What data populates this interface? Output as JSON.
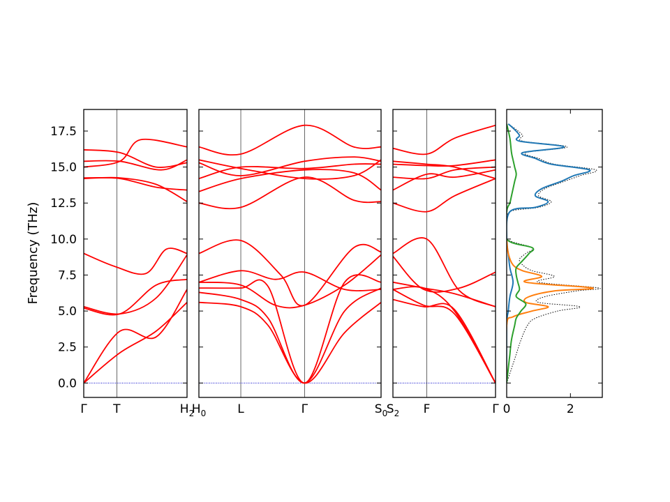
{
  "colors": {
    "bands": "#ff0000",
    "zero_line": "#0000cc",
    "dos_total": "#000000",
    "dos_1": "#1f77b4",
    "dos_2": "#ff7f0e",
    "dos_3": "#2ca02c"
  },
  "chart_data": {
    "type": "line",
    "title": "",
    "ylabel": "Frequency (THz)",
    "ylim": [
      -1,
      19
    ],
    "yticks": [
      "0.0",
      "2.5",
      "5.0",
      "7.5",
      "10.0",
      "12.5",
      "15.0",
      "17.5"
    ],
    "ytick_values": [
      0,
      2.5,
      5,
      7.5,
      10,
      12.5,
      15,
      17.5
    ],
    "grid": false,
    "panels": [
      {
        "name": "band-panel-1",
        "xlim": [
          0,
          1
        ],
        "ticks": [
          {
            "label": "Γ",
            "sub": "",
            "pos": 0
          },
          {
            "label": "T",
            "sub": "",
            "pos": 0.32
          },
          {
            "label": "H",
            "sub": "2",
            "pos": 1
          }
        ],
        "bands": [
          {
            "x": [
              0,
              0.35,
              0.7,
              1
            ],
            "y": [
              0,
              2.1,
              3.6,
              5.6
            ]
          },
          {
            "x": [
              0,
              0.35,
              0.7,
              1
            ],
            "y": [
              0,
              3.6,
              3.2,
              6.5
            ]
          },
          {
            "x": [
              0,
              0.35,
              0.7,
              1
            ],
            "y": [
              5.2,
              4.8,
              6.8,
              7.2
            ]
          },
          {
            "x": [
              0,
              0.35,
              0.7,
              1
            ],
            "y": [
              5.3,
              4.8,
              5.9,
              8.9
            ]
          },
          {
            "x": [
              0,
              0.3,
              0.6,
              0.8,
              1
            ],
            "y": [
              9.0,
              8.1,
              7.6,
              9.3,
              9.0
            ]
          },
          {
            "x": [
              0,
              0.35,
              0.7,
              1
            ],
            "y": [
              14.2,
              14.25,
              13.8,
              12.6
            ]
          },
          {
            "x": [
              0,
              0.35,
              0.7,
              1
            ],
            "y": [
              14.25,
              14.2,
              13.6,
              13.4
            ]
          },
          {
            "x": [
              0,
              0.35,
              0.55,
              1
            ],
            "y": [
              15.0,
              15.4,
              16.9,
              16.4
            ]
          },
          {
            "x": [
              0,
              0.35,
              0.75,
              1
            ],
            "y": [
              15.4,
              15.4,
              14.8,
              15.5
            ]
          },
          {
            "x": [
              0,
              0.35,
              0.7,
              1
            ],
            "y": [
              16.2,
              16.0,
              15.0,
              15.3
            ]
          }
        ]
      },
      {
        "name": "band-panel-2",
        "xlim": [
          0,
          1
        ],
        "ticks": [
          {
            "label": "H",
            "sub": "0",
            "pos": 0
          },
          {
            "label": "L",
            "sub": "",
            "pos": 0.23
          },
          {
            "label": "Γ",
            "sub": "",
            "pos": 0.58
          },
          {
            "label": "S",
            "sub": "0",
            "pos": 1
          }
        ],
        "bands": [
          {
            "x": [
              0,
              0.23,
              0.38,
              0.58,
              0.8,
              1
            ],
            "y": [
              5.6,
              5.3,
              4.0,
              0,
              3.5,
              5.6
            ]
          },
          {
            "x": [
              0,
              0.23,
              0.38,
              0.58,
              0.8,
              1
            ],
            "y": [
              6.3,
              5.8,
              4.5,
              0,
              5.0,
              6.6
            ]
          },
          {
            "x": [
              0,
              0.23,
              0.38,
              0.58,
              0.8,
              1
            ],
            "y": [
              6.6,
              6.6,
              6.7,
              0,
              7.0,
              7.0
            ]
          },
          {
            "x": [
              0,
              0.23,
              0.42,
              0.58,
              0.8,
              1
            ],
            "y": [
              7.0,
              6.8,
              5.4,
              5.4,
              6.8,
              8.9
            ]
          },
          {
            "x": [
              0,
              0.23,
              0.42,
              0.58,
              0.8,
              1
            ],
            "y": [
              7.0,
              7.8,
              7.2,
              7.7,
              6.5,
              6.5
            ]
          },
          {
            "x": [
              0,
              0.23,
              0.45,
              0.58,
              0.85,
              1
            ],
            "y": [
              9.0,
              9.9,
              7.5,
              5.4,
              9.4,
              9.1
            ]
          },
          {
            "x": [
              0,
              0.23,
              0.58,
              0.85,
              1
            ],
            "y": [
              12.5,
              12.2,
              14.3,
              12.7,
              12.6
            ]
          },
          {
            "x": [
              0,
              0.23,
              0.58,
              0.85,
              1
            ],
            "y": [
              13.3,
              14.2,
              14.8,
              14.6,
              13.4
            ]
          },
          {
            "x": [
              0,
              0.23,
              0.58,
              0.85,
              1
            ],
            "y": [
              14.2,
              15.0,
              14.9,
              15.2,
              15.2
            ]
          },
          {
            "x": [
              0,
              0.23,
              0.58,
              0.85,
              1
            ],
            "y": [
              15.3,
              14.4,
              15.4,
              15.7,
              15.4
            ]
          },
          {
            "x": [
              0,
              0.23,
              0.58,
              0.85,
              1
            ],
            "y": [
              15.5,
              14.9,
              14.2,
              14.4,
              15.5
            ]
          },
          {
            "x": [
              0,
              0.23,
              0.58,
              0.85,
              1
            ],
            "y": [
              16.4,
              15.9,
              17.9,
              16.4,
              16.4
            ]
          }
        ]
      },
      {
        "name": "band-panel-3",
        "xlim": [
          0,
          1
        ],
        "ticks": [
          {
            "label": "S",
            "sub": "2",
            "pos": 0
          },
          {
            "label": "F",
            "sub": "",
            "pos": 0.33
          },
          {
            "label": "Γ",
            "sub": "",
            "pos": 1
          }
        ],
        "bands": [
          {
            "x": [
              0,
              0.3,
              0.6,
              1
            ],
            "y": [
              5.8,
              5.3,
              5.1,
              0
            ]
          },
          {
            "x": [
              0,
              0.3,
              0.6,
              1
            ],
            "y": [
              6.5,
              5.4,
              4.8,
              0
            ]
          },
          {
            "x": [
              0,
              0.3,
              0.6,
              1
            ],
            "y": [
              6.5,
              6.6,
              5.0,
              0
            ]
          },
          {
            "x": [
              0,
              0.3,
              0.6,
              1
            ],
            "y": [
              7.0,
              6.6,
              6.2,
              5.3
            ]
          },
          {
            "x": [
              0,
              0.3,
              0.65,
              1
            ],
            "y": [
              8.8,
              6.5,
              6.6,
              7.7
            ]
          },
          {
            "x": [
              0,
              0.33,
              0.65,
              1
            ],
            "y": [
              9.0,
              10.0,
              6.4,
              5.3
            ]
          },
          {
            "x": [
              0,
              0.33,
              0.6,
              1
            ],
            "y": [
              12.5,
              11.9,
              13.0,
              14.2
            ]
          },
          {
            "x": [
              0,
              0.33,
              0.6,
              1
            ],
            "y": [
              13.4,
              14.5,
              14.3,
              14.8
            ]
          },
          {
            "x": [
              0,
              0.33,
              0.6,
              1
            ],
            "y": [
              14.3,
              14.2,
              14.8,
              15.0
            ]
          },
          {
            "x": [
              0,
              0.33,
              0.6,
              1
            ],
            "y": [
              15.2,
              15.1,
              15.1,
              15.5
            ]
          },
          {
            "x": [
              0,
              0.33,
              0.6,
              1
            ],
            "y": [
              15.4,
              15.2,
              15.0,
              14.2
            ]
          },
          {
            "x": [
              0,
              0.33,
              0.6,
              1
            ],
            "y": [
              16.3,
              15.9,
              17.0,
              17.9
            ]
          }
        ]
      },
      {
        "name": "dos-panel",
        "xlim": [
          0,
          3
        ],
        "ticks": [
          {
            "label": "0",
            "sub": "",
            "pos": 0
          },
          {
            "label": "2",
            "sub": "",
            "pos": 2
          }
        ],
        "dos": [
          {
            "name": "total",
            "style": "dotted",
            "y": [
              0,
              1,
              2,
              3,
              4,
              4.5,
              5,
              5.3,
              5.6,
              6,
              6.4,
              6.6,
              7,
              7.4,
              7.8,
              8.2,
              8.6,
              9.0,
              9.4,
              10,
              11,
              11.9,
              12.2,
              12.6,
              13.0,
              13.5,
              14.0,
              14.4,
              14.8,
              15.2,
              15.6,
              16.0,
              16.4,
              16.8,
              17.2,
              17.6,
              18.0
            ],
            "x": [
              0,
              0.15,
              0.3,
              0.45,
              0.65,
              0.9,
              1.6,
              2.3,
              1.0,
              1.2,
              2.2,
              2.9,
              1.0,
              1.5,
              0.8,
              0.5,
              0.4,
              0.6,
              0.8,
              0,
              0,
              0.1,
              1.0,
              1.4,
              1.0,
              1.2,
              1.8,
              2.3,
              2.8,
              1.5,
              1.0,
              0.6,
              1.9,
              0.5,
              0.5,
              0.3,
              0.05
            ]
          },
          {
            "name": "dos-1",
            "style": "solid",
            "y": [
              0,
              4,
              5,
              6,
              7,
              8,
              9,
              10,
              11.9,
              12.2,
              12.6,
              13.0,
              13.5,
              14.0,
              14.4,
              14.8,
              15.2,
              15.6,
              16.0,
              16.4,
              16.8,
              17.2,
              17.6,
              18.0
            ],
            "x": [
              0,
              0,
              0.05,
              0.1,
              0.2,
              0.1,
              0.05,
              0,
              0.1,
              0.9,
              1.3,
              0.9,
              1.1,
              1.7,
              2.1,
              2.6,
              1.4,
              0.9,
              0.5,
              1.8,
              0.4,
              0.4,
              0.25,
              0.05
            ]
          },
          {
            "name": "dos-2",
            "style": "solid",
            "y": [
              0,
              4,
              4.6,
              5.0,
              5.3,
              5.6,
              6.0,
              6.4,
              6.6,
              7.0,
              7.4,
              7.8,
              8.2,
              9,
              10
            ],
            "x": [
              0,
              0,
              0.2,
              0.8,
              1.3,
              0.6,
              0.7,
              1.5,
              2.7,
              0.6,
              1.1,
              0.5,
              0.2,
              0.05,
              0
            ]
          },
          {
            "name": "dos-3",
            "style": "solid",
            "y": [
              0,
              1,
              2,
              3,
              4,
              4.5,
              5,
              5.5,
              6,
              6.5,
              7,
              7.5,
              8,
              8.5,
              9,
              9.4,
              10,
              11.9,
              12.5,
              13,
              14,
              14.5,
              15,
              15.5,
              16,
              17,
              18
            ],
            "x": [
              0,
              0.05,
              0.1,
              0.15,
              0.25,
              0.3,
              0.45,
              0.6,
              0.3,
              0.4,
              0.35,
              0.3,
              0.3,
              0.5,
              0.7,
              0.8,
              0,
              0,
              0.1,
              0.15,
              0.25,
              0.3,
              0.25,
              0.2,
              0.15,
              0.1,
              0
            ]
          }
        ]
      }
    ]
  }
}
